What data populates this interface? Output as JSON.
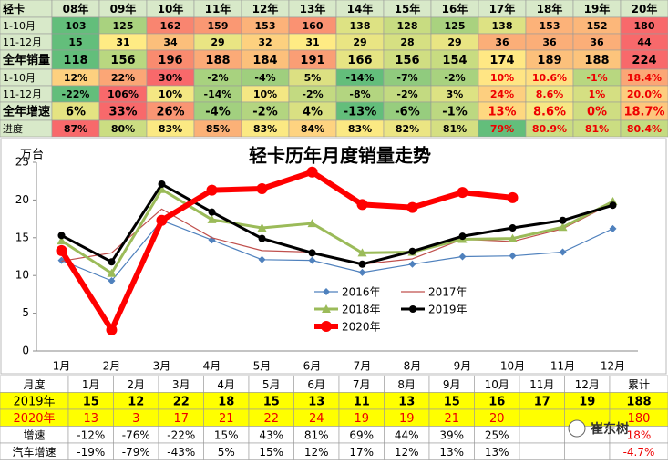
{
  "top_table": {
    "header": [
      "轻卡",
      "08年",
      "09年",
      "10年",
      "11年",
      "12年",
      "13年",
      "14年",
      "15年",
      "16年",
      "17年",
      "18年",
      "19年",
      "20年"
    ],
    "rows": [
      {
        "label": "1-10月",
        "cells": [
          "103",
          "125",
          "162",
          "159",
          "153",
          "160",
          "138",
          "128",
          "125",
          "138",
          "153",
          "152",
          "180"
        ]
      },
      {
        "label": "11-12月",
        "cells": [
          "15",
          "31",
          "34",
          "29",
          "32",
          "31",
          "29",
          "28",
          "29",
          "36",
          "36",
          "36",
          "44"
        ]
      },
      {
        "label": "全年销量",
        "cells": [
          "118",
          "156",
          "196",
          "188",
          "184",
          "191",
          "166",
          "156",
          "154",
          "174",
          "189",
          "188",
          "224"
        ]
      },
      {
        "label": "1-10月",
        "cells": [
          "12%",
          "22%",
          "30%",
          "-2%",
          "-4%",
          "5%",
          "-14%",
          "-7%",
          "-2%",
          "10%",
          "10.6%",
          "-1%",
          "18.4%"
        ]
      },
      {
        "label": "11-12月",
        "cells": [
          "-22%",
          "106%",
          "10%",
          "-14%",
          "10%",
          "-2%",
          "-8%",
          "-2%",
          "3%",
          "24%",
          "8.6%",
          "1%",
          "20.0%"
        ]
      },
      {
        "label": "全年增速",
        "cells": [
          "6%",
          "33%",
          "26%",
          "-4%",
          "-2%",
          "4%",
          "-13%",
          "-6%",
          "-1%",
          "13%",
          "8.6%",
          "0%",
          "18.7%"
        ]
      },
      {
        "label": "进度",
        "cells": [
          "87%",
          "80%",
          "83%",
          "85%",
          "83%",
          "84%",
          "83%",
          "82%",
          "81%",
          "79%",
          "80.9%",
          "81%",
          "80.4%"
        ]
      }
    ]
  },
  "chart_data": {
    "type": "line",
    "title": "轻卡历年月度销量走势",
    "y_label": "万台",
    "categories": [
      "1月",
      "2月",
      "3月",
      "4月",
      "5月",
      "6月",
      "7月",
      "8月",
      "9月",
      "10月",
      "11月",
      "12月"
    ],
    "ylim": [
      0,
      25
    ],
    "yticks": [
      0,
      5,
      10,
      15,
      20,
      25
    ],
    "series": [
      {
        "name": "2016年",
        "color": "#4f81bd",
        "marker": "diamond",
        "values": [
          12.0,
          9.3,
          17.3,
          14.7,
          12.1,
          12.0,
          10.4,
          11.5,
          12.5,
          12.6,
          13.1,
          16.2
        ]
      },
      {
        "name": "2017年",
        "color": "#c0504d",
        "marker": "none",
        "values": [
          11.9,
          13.0,
          18.8,
          15.0,
          13.3,
          13.1,
          11.5,
          12.2,
          14.8,
          14.5,
          16.2,
          19.6
        ]
      },
      {
        "name": "2018年",
        "color": "#9bbb59",
        "marker": "triangle",
        "values": [
          14.6,
          10.3,
          21.4,
          17.4,
          16.3,
          16.9,
          13.0,
          13.1,
          14.8,
          14.9,
          16.4,
          19.8
        ]
      },
      {
        "name": "2019年",
        "color": "#000000",
        "marker": "circle",
        "values": [
          15.3,
          11.8,
          22.1,
          18.4,
          14.9,
          13.0,
          11.5,
          13.2,
          15.2,
          16.3,
          17.3,
          19.3
        ]
      },
      {
        "name": "2020年",
        "color": "#ff0000",
        "marker": "circle",
        "values": [
          13.3,
          2.8,
          17.3,
          21.3,
          21.5,
          23.7,
          19.4,
          19.0,
          21.0,
          20.3,
          null,
          null
        ]
      }
    ]
  },
  "bottom_table": {
    "header": [
      "月度",
      "1月",
      "2月",
      "3月",
      "4月",
      "5月",
      "6月",
      "7月",
      "8月",
      "9月",
      "10月",
      "11月",
      "12月",
      "累计"
    ],
    "rows": [
      {
        "label": "2019年",
        "months": [
          "15",
          "12",
          "22",
          "18",
          "15",
          "13",
          "11",
          "13",
          "15",
          "16",
          "17",
          "19"
        ],
        "total": "188"
      },
      {
        "label": "2020年",
        "months": [
          "13",
          "3",
          "17",
          "21",
          "22",
          "24",
          "19",
          "19",
          "21",
          "20"
        ],
        "total": "180"
      },
      {
        "label": "增速",
        "months": [
          "-12%",
          "-76%",
          "-22%",
          "15%",
          "43%",
          "81%",
          "69%",
          "44%",
          "39%",
          "25%"
        ],
        "total": "18%"
      },
      {
        "label": "汽车增速",
        "months": [
          "-19%",
          "-79%",
          "-43%",
          "5%",
          "15%",
          "12%",
          "17%",
          "12%",
          "13%",
          "13%"
        ],
        "total": "-4.7%"
      }
    ]
  },
  "watermark": "崔东树"
}
